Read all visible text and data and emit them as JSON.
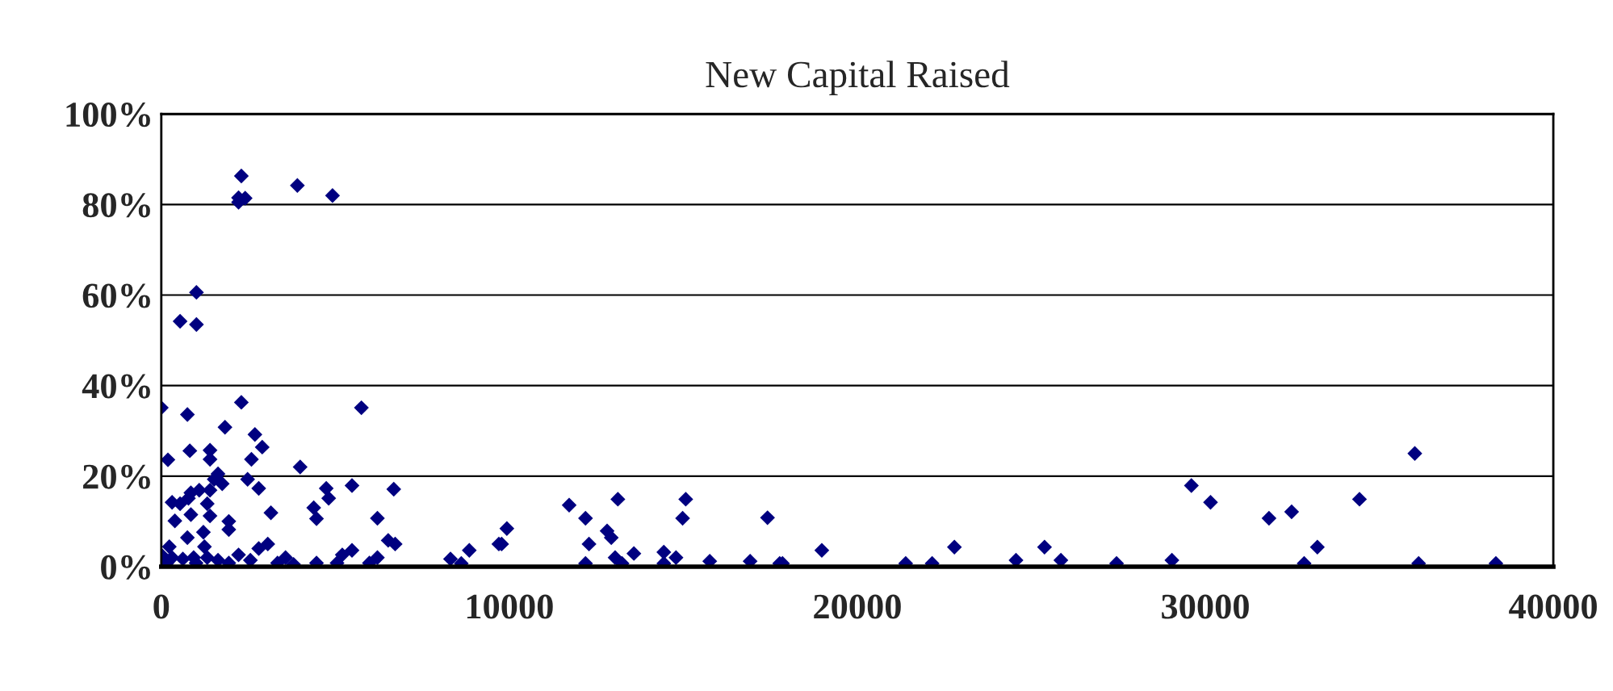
{
  "chart_data": {
    "type": "scatter",
    "title": "New Capital Raised",
    "x": [
      2300,
      2220,
      2410,
      2220,
      3910,
      4920,
      1010,
      540,
      1010,
      0,
      750,
      2300,
      5750,
      1830,
      2690,
      2900,
      2590,
      1400,
      1400,
      820,
      190,
      3990,
      2480,
      2800,
      1630,
      1520,
      1750,
      1400,
      1090,
      850,
      310,
      540,
      780,
      1320,
      850,
      390,
      1400,
      1210,
      1940,
      1940,
      3150,
      4740,
      4810,
      4380,
      4460,
      5480,
      6680,
      6210,
      6520,
      6720,
      750,
      230,
      1240,
      2800,
      3060,
      0,
      310,
      620,
      930,
      1320,
      1630,
      2220,
      2560,
      3340,
      3570,
      3800,
      4460,
      5050,
      5200,
      5480,
      5980,
      6210,
      8310,
      8620,
      8850,
      9700,
      160,
      1000,
      1940,
      9780,
      9930,
      11720,
      12190,
      13120,
      12810,
      12930,
      12290,
      12190,
      13040,
      13240,
      13580,
      14440,
      14440,
      14790,
      14980,
      15070,
      15760,
      16920,
      17420,
      17770,
      17850,
      18980,
      21390,
      22150,
      22790,
      24560,
      25380,
      25850,
      27450,
      29040,
      29600,
      30150,
      31830,
      32480,
      32840,
      33220,
      34430,
      36020,
      36130,
      38350
    ],
    "series": [
      {
        "color": "#000080",
        "values": [
          86.3,
          81.5,
          81.4,
          80.5,
          84.2,
          82,
          60.6,
          54.2,
          53.5,
          35.1,
          33.6,
          36.3,
          35.1,
          30.8,
          29.2,
          26.4,
          23.7,
          25.7,
          23.7,
          25.6,
          23.6,
          22.0,
          19.3,
          17.3,
          20.5,
          19.3,
          18.3,
          16.9,
          16.9,
          16.3,
          14.2,
          13.9,
          15.1,
          13.9,
          11.5,
          10.1,
          11.2,
          7.6,
          10.0,
          8.2,
          11.9,
          17.3,
          15.1,
          13.0,
          10.6,
          17.9,
          17.1,
          10.7,
          5.8,
          5.0,
          6.4,
          4.4,
          4.4,
          4.0,
          5.0,
          2.6,
          2.0,
          1.7,
          2.0,
          2.0,
          1.4,
          2.6,
          1.4,
          0.8,
          2.0,
          0.5,
          0.8,
          0.8,
          2.6,
          3.6,
          0.8,
          2.0,
          1.7,
          0.7,
          3.6,
          5.0,
          0.8,
          0.8,
          0.8,
          5.0,
          8.4,
          13.6,
          10.7,
          14.9,
          7.9,
          6.4,
          5.0,
          0.7,
          2.0,
          0.7,
          2.9,
          3.2,
          0.7,
          2.0,
          10.7,
          14.9,
          1.2,
          1.2,
          10.8,
          0.7,
          0.7,
          3.6,
          0.7,
          0.7,
          4.3,
          1.4,
          4.3,
          1.4,
          0.7,
          1.4,
          17.9,
          14.2,
          10.7,
          12.1,
          0.7,
          4.3,
          14.9,
          25.0,
          0.7,
          0.7
        ]
      }
    ],
    "xlim": [
      0,
      40000
    ],
    "xticks": [
      0,
      10000,
      20000,
      30000,
      40000
    ],
    "ylim": [
      0,
      100
    ],
    "yticks": [
      {
        "value": 0,
        "label": "0%"
      },
      {
        "value": 20,
        "label": "20%"
      },
      {
        "value": 40,
        "label": "40%"
      },
      {
        "value": 60,
        "label": "60%"
      },
      {
        "value": 80,
        "label": "80%"
      },
      {
        "value": 100,
        "label": "100%"
      }
    ],
    "grid": "y",
    "marker": "diamond"
  }
}
